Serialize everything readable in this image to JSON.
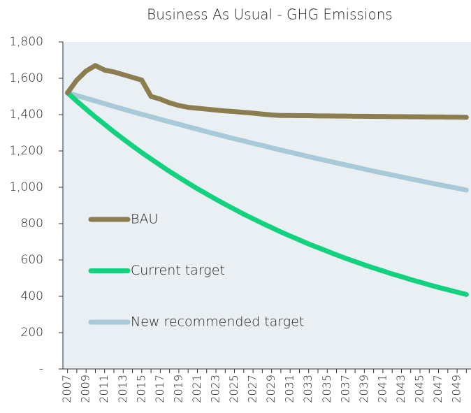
{
  "chart_data": {
    "type": "line",
    "title": "Business As Usual - GHG Emissions",
    "categories": [
      "2007",
      null,
      "2009",
      null,
      "2011",
      null,
      "2013",
      null,
      "2015",
      null,
      "2017",
      null,
      "2019",
      null,
      "2021",
      null,
      "2023",
      null,
      "2025",
      null,
      "2027",
      null,
      "2029",
      null,
      "2031",
      null,
      "2033",
      null,
      "2035",
      null,
      "2037",
      null,
      "2039",
      null,
      "2041",
      null,
      "2043",
      null,
      "2045",
      null,
      "2047",
      null,
      "2049",
      null
    ],
    "series": [
      {
        "name": "BAU",
        "color": "#8b7d4f",
        "values": [
          1520,
          1590,
          1640,
          1670,
          1645,
          1635,
          1620,
          1605,
          1590,
          1500,
          1485,
          1465,
          1450,
          1440,
          1435,
          1430,
          1425,
          1420,
          1417,
          1412,
          1408,
          1403,
          1398,
          1395,
          1395,
          1394,
          1394,
          1393,
          1393,
          1392,
          1392,
          1391,
          1391,
          1390,
          1390,
          1389,
          1389,
          1388,
          1388,
          1387,
          1387,
          1386,
          1386,
          1385
        ]
      },
      {
        "name": "Current target",
        "color": "#12d17f",
        "values": [
          1520,
          1474,
          1430,
          1387,
          1346,
          1305,
          1266,
          1228,
          1191,
          1156,
          1121,
          1087,
          1055,
          1023,
          992,
          963,
          934,
          906,
          879,
          852,
          827,
          802,
          778,
          754,
          732,
          710,
          688,
          668,
          648,
          628,
          609,
          591,
          573,
          556,
          540,
          523,
          508,
          492,
          478,
          463,
          449,
          436,
          423,
          410
        ]
      },
      {
        "name": "New recommended target",
        "color": "#a8cad8",
        "values": [
          1520,
          1505,
          1490,
          1475,
          1460,
          1445,
          1431,
          1416,
          1402,
          1388,
          1374,
          1360,
          1347,
          1333,
          1320,
          1306,
          1293,
          1280,
          1267,
          1255,
          1242,
          1230,
          1217,
          1205,
          1193,
          1181,
          1169,
          1157,
          1146,
          1134,
          1123,
          1112,
          1100,
          1089,
          1078,
          1068,
          1057,
          1046,
          1036,
          1025,
          1015,
          1005,
          995,
          985
        ]
      }
    ],
    "ylim": [
      0,
      1800
    ],
    "yticks": [
      {
        "value": 0,
        "label": "-"
      },
      200,
      400,
      600,
      800,
      {
        "value": 1000,
        "label": "1,000"
      },
      {
        "value": 1200,
        "label": "1,200"
      },
      {
        "value": 1400,
        "label": "1,400"
      },
      {
        "value": 1600,
        "label": "1,600"
      },
      {
        "value": 1800,
        "label": "1,800"
      }
    ],
    "grid": false
  }
}
